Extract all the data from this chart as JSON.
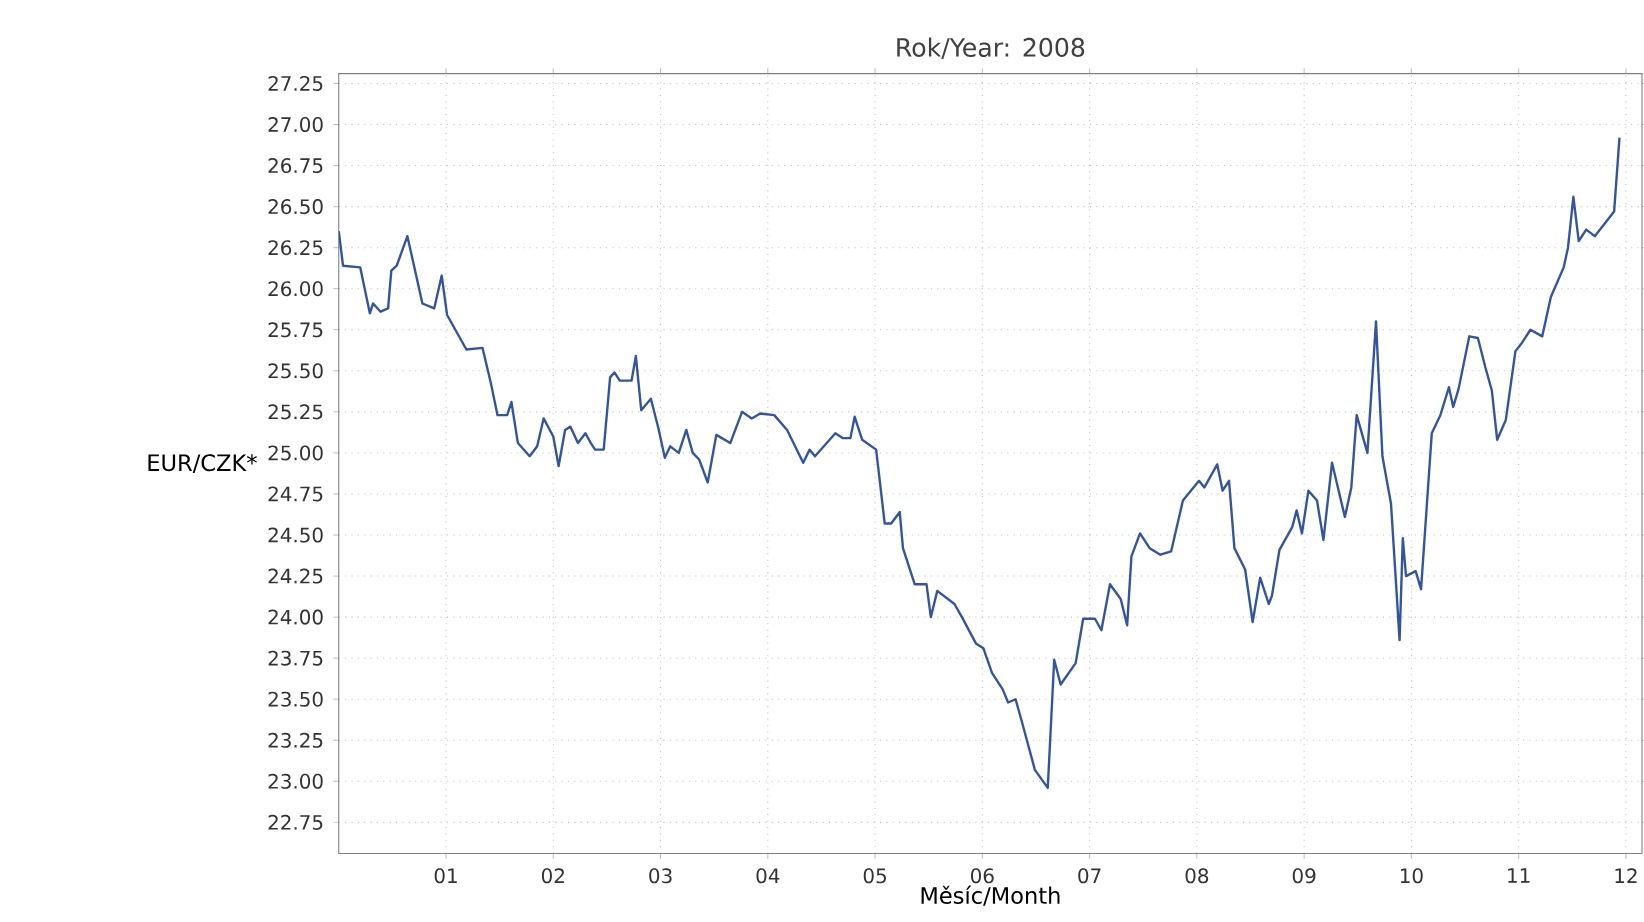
{
  "chart_data": {
    "type": "line",
    "title": "Rok/Year: 2008",
    "xlabel": "Měsíc/Month",
    "ylabel": "EUR/CZK*",
    "x": [
      0,
      0.04,
      0.2,
      0.29,
      0.32,
      0.39,
      0.46,
      0.49,
      0.54,
      0.64,
      0.78,
      0.89,
      0.96,
      1.01,
      1.19,
      1.34,
      1.42,
      1.48,
      1.57,
      1.61,
      1.67,
      1.78,
      1.85,
      1.91,
      2.0,
      2.05,
      2.11,
      2.16,
      2.23,
      2.3,
      2.35,
      2.39,
      2.47,
      2.53,
      2.57,
      2.62,
      2.73,
      2.77,
      2.82,
      2.91,
      2.98,
      3.04,
      3.09,
      3.17,
      3.24,
      3.3,
      3.36,
      3.44,
      3.52,
      3.65,
      3.76,
      3.85,
      3.93,
      4.06,
      4.18,
      4.33,
      4.39,
      4.44,
      4.63,
      4.7,
      4.77,
      4.81,
      4.88,
      5.01,
      5.09,
      5.15,
      5.23,
      5.26,
      5.37,
      5.48,
      5.52,
      5.58,
      5.74,
      5.81,
      5.94,
      6.01,
      6.09,
      6.19,
      6.24,
      6.31,
      6.37,
      6.49,
      6.61,
      6.67,
      6.73,
      6.87,
      6.94,
      7.05,
      7.11,
      7.19,
      7.29,
      7.35,
      7.39,
      7.47,
      7.56,
      7.66,
      7.76,
      7.87,
      8.02,
      8.07,
      8.19,
      8.24,
      8.3,
      8.35,
      8.45,
      8.52,
      8.59,
      8.67,
      8.7,
      8.77,
      8.89,
      8.93,
      8.98,
      9.04,
      9.12,
      9.18,
      9.26,
      9.38,
      9.44,
      9.49,
      9.59,
      9.67,
      9.73,
      9.81,
      9.89,
      9.92,
      9.95,
      10.04,
      10.09,
      10.19,
      10.27,
      10.35,
      10.39,
      10.44,
      10.54,
      10.62,
      10.69,
      10.75,
      10.8,
      10.88,
      10.97,
      11.03,
      11.11,
      11.22,
      11.3,
      11.42,
      11.46,
      11.51,
      11.56,
      11.63,
      11.71,
      11.89,
      11.94
    ],
    "series": [
      {
        "color": "#3355a0",
        "values": [
          26.35,
          26.14,
          26.13,
          25.85,
          25.91,
          25.86,
          25.88,
          26.11,
          26.14,
          26.32,
          25.91,
          25.88,
          26.08,
          25.84,
          25.63,
          25.64,
          25.42,
          25.23,
          25.23,
          25.31,
          25.06,
          24.98,
          25.04,
          25.21,
          25.1,
          24.92,
          25.14,
          25.16,
          25.06,
          25.12,
          25.06,
          25.02,
          25.02,
          25.46,
          25.49,
          25.44,
          25.44,
          25.59,
          25.26,
          25.33,
          25.15,
          24.97,
          25.04,
          25.0,
          25.14,
          25.0,
          24.96,
          24.82,
          25.11,
          25.06,
          25.25,
          25.21,
          25.24,
          25.23,
          25.14,
          24.94,
          25.02,
          24.98,
          25.12,
          25.09,
          25.09,
          25.22,
          25.08,
          25.02,
          24.57,
          24.57,
          24.64,
          24.42,
          24.2,
          24.2,
          24.0,
          24.16,
          24.08,
          24.0,
          23.84,
          23.81,
          23.66,
          23.56,
          23.48,
          23.5,
          23.36,
          23.07,
          22.96,
          23.74,
          23.59,
          23.72,
          23.99,
          23.99,
          23.92,
          24.2,
          24.11,
          23.95,
          24.37,
          24.51,
          24.42,
          24.38,
          24.4,
          24.71,
          24.83,
          24.79,
          24.93,
          24.77,
          24.83,
          24.42,
          24.29,
          23.97,
          24.24,
          24.08,
          24.13,
          24.41,
          24.55,
          24.65,
          24.51,
          24.77,
          24.71,
          24.47,
          24.94,
          24.61,
          24.79,
          25.23,
          25.0,
          25.8,
          24.98,
          24.69,
          23.86,
          24.48,
          24.25,
          24.28,
          24.17,
          25.12,
          25.23,
          25.4,
          25.28,
          25.39,
          25.71,
          25.7,
          25.52,
          25.38,
          25.08,
          25.2,
          25.62,
          25.67,
          25.75,
          25.71,
          25.95,
          26.13,
          26.25,
          26.56,
          26.29,
          26.36,
          26.32,
          26.47,
          26.92
        ]
      }
    ],
    "xlim": [
      0,
      12.15
    ],
    "ylim": [
      22.56,
      27.31
    ],
    "xticks": [
      {
        "value": 1,
        "label": "01"
      },
      {
        "value": 2,
        "label": "02"
      },
      {
        "value": 3,
        "label": "03"
      },
      {
        "value": 4,
        "label": "04"
      },
      {
        "value": 5,
        "label": "05"
      },
      {
        "value": 6,
        "label": "06"
      },
      {
        "value": 7,
        "label": "07"
      },
      {
        "value": 8,
        "label": "08"
      },
      {
        "value": 9,
        "label": "09"
      },
      {
        "value": 10,
        "label": "10"
      },
      {
        "value": 11,
        "label": "11"
      },
      {
        "value": 12,
        "label": "12"
      }
    ],
    "yticks": [
      22.75,
      {
        "value": 23,
        "label": "23.00"
      },
      23.25,
      {
        "value": 23.5,
        "label": "23.50"
      },
      23.75,
      {
        "value": 24,
        "label": "24.00"
      },
      24.25,
      {
        "value": 24.5,
        "label": "24.50"
      },
      24.75,
      {
        "value": 25,
        "label": "25.00"
      },
      25.25,
      {
        "value": 25.5,
        "label": "25.50"
      },
      25.75,
      {
        "value": 26,
        "label": "26.00"
      },
      26.25,
      {
        "value": 26.5,
        "label": "26.50"
      },
      26.75,
      {
        "value": 27,
        "label": "27.00"
      },
      27.25
    ],
    "grid": true
  }
}
